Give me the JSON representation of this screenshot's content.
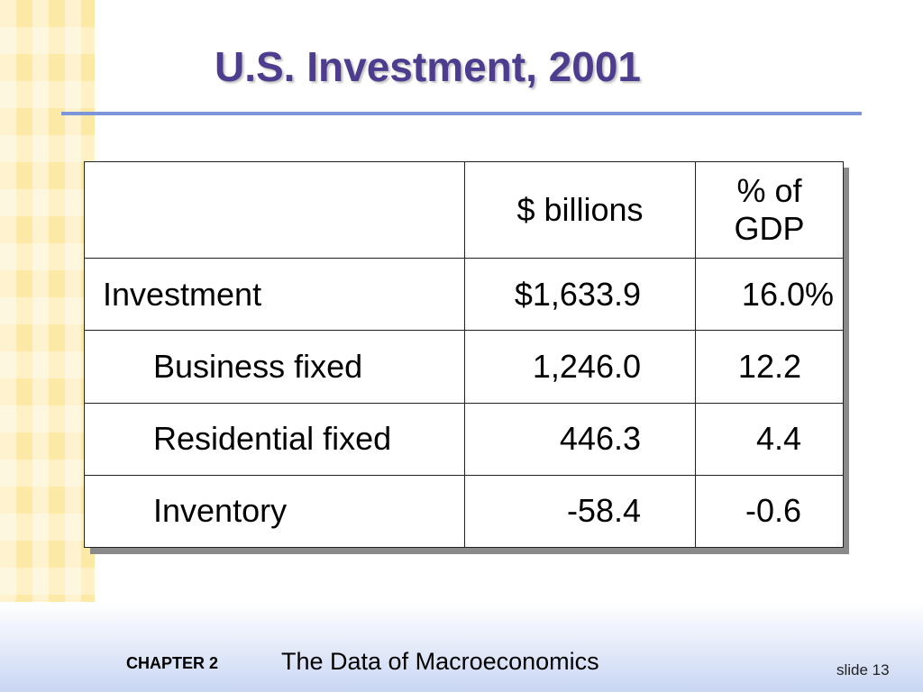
{
  "slide": {
    "title": "U.S. Investment, 2001"
  },
  "table": {
    "headers": [
      "",
      "$ billions",
      "% of GDP"
    ],
    "header_pct_line1": "% of",
    "header_pct_line2": "GDP",
    "rows": [
      {
        "label": "Investment",
        "billions": "$1,633.9",
        "pct": "16.0%"
      },
      {
        "label": "Business fixed",
        "billions": "1,246.0",
        "pct": "12.2"
      },
      {
        "label": "Residential fixed",
        "billions": "446.3",
        "pct": "4.4"
      },
      {
        "label": "Inventory",
        "billions": "-58.4",
        "pct": "-0.6"
      }
    ]
  },
  "footer": {
    "chapter_label": "CHAPTER 2",
    "chapter_title": "The Data of Macroeconomics",
    "slide_label": "slide 13"
  },
  "colors": {
    "title": "#4e3d8f",
    "rule": "#7b95d8",
    "strip": "#fde9a6"
  }
}
